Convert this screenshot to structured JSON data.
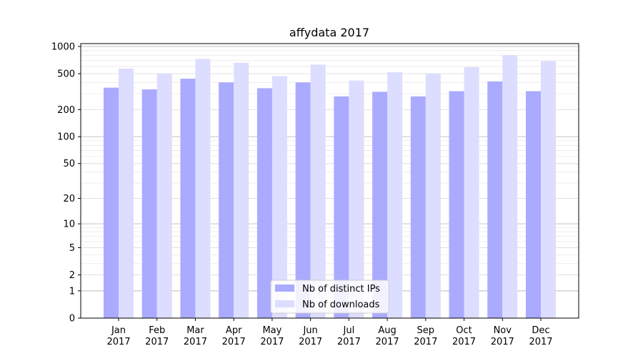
{
  "chart_data": {
    "type": "bar",
    "title": "affydata 2017",
    "xlabel": "",
    "ylabel": "",
    "yscale": "log1p",
    "yticks": [
      {
        "value": 0,
        "label": "0"
      },
      {
        "value": 1,
        "label": "1"
      },
      {
        "value": 2,
        "label": "2"
      },
      {
        "value": 5,
        "label": "5"
      },
      {
        "value": 10,
        "label": "10"
      },
      {
        "value": 20,
        "label": "20"
      },
      {
        "value": 50,
        "label": "50"
      },
      {
        "value": 100,
        "label": "100"
      },
      {
        "value": 200,
        "label": "200"
      },
      {
        "value": 500,
        "label": "500"
      },
      {
        "value": 1000,
        "label": "1000"
      }
    ],
    "categories": [
      {
        "month": "Jan",
        "year": "2017"
      },
      {
        "month": "Feb",
        "year": "2017"
      },
      {
        "month": "Mar",
        "year": "2017"
      },
      {
        "month": "Apr",
        "year": "2017"
      },
      {
        "month": "May",
        "year": "2017"
      },
      {
        "month": "Jun",
        "year": "2017"
      },
      {
        "month": "Jul",
        "year": "2017"
      },
      {
        "month": "Aug",
        "year": "2017"
      },
      {
        "month": "Sep",
        "year": "2017"
      },
      {
        "month": "Oct",
        "year": "2017"
      },
      {
        "month": "Nov",
        "year": "2017"
      },
      {
        "month": "Dec",
        "year": "2017"
      }
    ],
    "series": [
      {
        "name": "Nb of distinct IPs",
        "color": "#aaaaff",
        "values": [
          350,
          335,
          440,
          400,
          345,
          400,
          280,
          315,
          280,
          320,
          410,
          320
        ]
      },
      {
        "name": "Nb of downloads",
        "color": "#ddddff",
        "values": [
          570,
          500,
          730,
          660,
          470,
          630,
          420,
          520,
          500,
          590,
          800,
          690
        ]
      }
    ],
    "grid": true,
    "legend_position": "bottom-center"
  }
}
